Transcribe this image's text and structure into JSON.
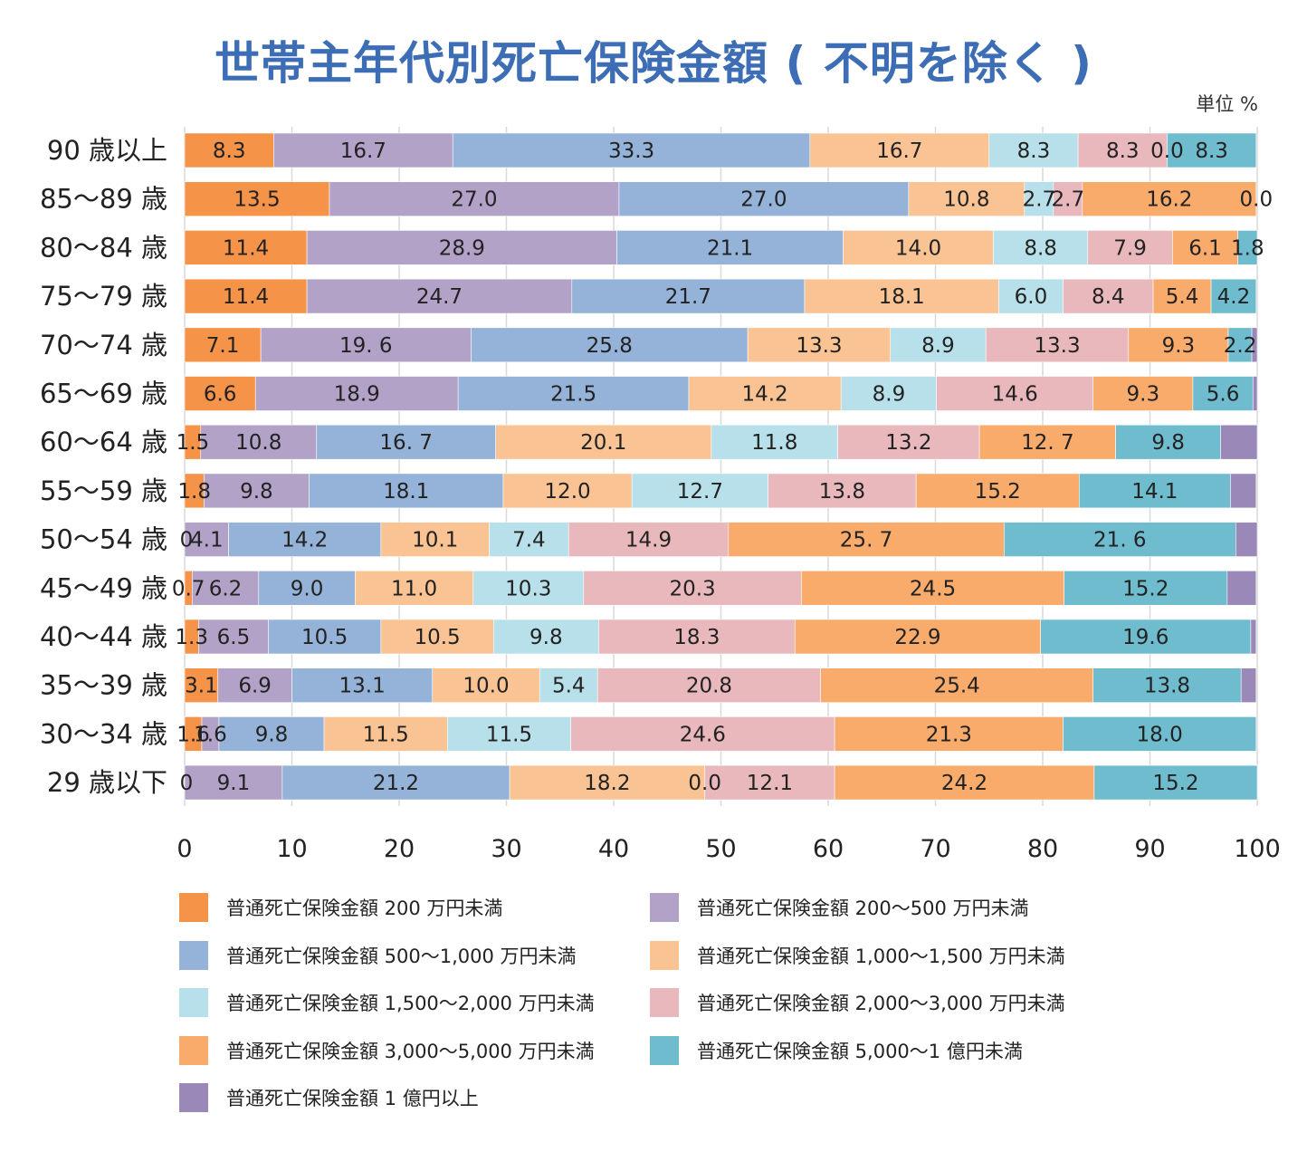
{
  "title": "世帯主年代別死亡保険金額 ( 不明を除く )",
  "unit": "単位 %",
  "chart_data": {
    "type": "bar",
    "orientation": "horizontal",
    "stacked": true,
    "title": "世帯主年代別死亡保険金額 ( 不明を除く )",
    "xlim": [
      0,
      100
    ],
    "xticks": [
      "0",
      "10",
      "20",
      "30",
      "40",
      "50",
      "60",
      "70",
      "80",
      "90",
      "100"
    ],
    "categories": [
      "90 歳以上",
      "85～89 歳",
      "80～84 歳",
      "75～79 歳",
      "70～74 歳",
      "65～69 歳",
      "60～64 歳",
      "55～59 歳",
      "50～54 歳",
      "45～49 歳",
      "40～44 歳",
      "35～39 歳",
      "30～34 歳",
      "29 歳以下"
    ],
    "series": [
      {
        "name": "普通死亡保険金額 200 万円未満",
        "color": "#f59349",
        "values": [
          8.3,
          13.5,
          11.4,
          11.4,
          7.1,
          6.6,
          1.5,
          1.8,
          0.0,
          0.7,
          1.3,
          3.1,
          1.6,
          0.0
        ],
        "labels": [
          "8.3",
          "13.5",
          "11.4",
          "11.4",
          "7.1",
          "6.6",
          "1.5",
          "1.8",
          "0",
          "0.7",
          "1.3",
          "3.1",
          "1.6",
          "0"
        ]
      },
      {
        "name": "普通死亡保険金額 200～500 万円未満",
        "color": "#b3a2c8",
        "values": [
          16.7,
          27.0,
          28.9,
          24.7,
          19.6,
          18.9,
          10.8,
          9.8,
          4.1,
          6.2,
          6.5,
          6.9,
          1.6,
          9.1
        ],
        "labels": [
          "16.7",
          "27.0",
          "28.9",
          "24.7",
          "19. 6",
          "18.9",
          "10.8",
          "9.8",
          "4.1",
          "6.2",
          "6.5",
          "6.9",
          "1.6",
          "9.1"
        ]
      },
      {
        "name": "普通死亡保険金額 500～1,000 万円未満",
        "color": "#95b3d8",
        "values": [
          33.3,
          27.0,
          21.1,
          21.7,
          25.8,
          21.5,
          16.7,
          18.1,
          14.2,
          9.0,
          10.5,
          13.1,
          9.8,
          21.2
        ],
        "labels": [
          "33.3",
          "27.0",
          "21.1",
          "21.7",
          "25.8",
          "21.5",
          "16. 7",
          "18.1",
          "14.2",
          "9.0",
          "10.5",
          "13.1",
          "9.8",
          "21.2"
        ]
      },
      {
        "name": "普通死亡保険金額 1,000～1,500 万円未満",
        "color": "#f9c394",
        "values": [
          16.7,
          10.8,
          14.0,
          18.1,
          13.3,
          14.2,
          20.1,
          12.0,
          10.1,
          11.0,
          10.5,
          10.0,
          11.5,
          18.2
        ],
        "labels": [
          "16.7",
          "10.8",
          "14.0",
          "18.1",
          "13.3",
          "14.2",
          "20.1",
          "12.0",
          "10.1",
          "11.0",
          "10.5",
          "10.0",
          "11.5",
          "18.2"
        ]
      },
      {
        "name": "普通死亡保険金額 1,500～2,000 万円未満",
        "color": "#b8e0ea",
        "values": [
          8.3,
          2.7,
          8.8,
          6.0,
          8.9,
          8.9,
          11.8,
          12.7,
          7.4,
          10.3,
          9.8,
          5.4,
          11.5,
          0.0
        ],
        "labels": [
          "8.3",
          "2.7",
          "8.8",
          "6.0",
          "8.9",
          "8.9",
          "11.8",
          "12.7",
          "7.4",
          "10.3",
          "9.8",
          "5.4",
          "11.5",
          "0.0"
        ]
      },
      {
        "name": "普通死亡保険金額 2,000～3,000 万円未満",
        "color": "#e9b8bc",
        "values": [
          8.3,
          2.7,
          7.9,
          8.4,
          13.3,
          14.6,
          13.2,
          13.8,
          14.9,
          20.3,
          18.3,
          20.8,
          24.6,
          12.1
        ],
        "labels": [
          "8.3",
          "2.7",
          "7.9",
          "8.4",
          "13.3",
          "14.6",
          "13.2",
          "13.8",
          "14.9",
          "20.3",
          "18.3",
          "20.8",
          "24.6",
          "12.1"
        ]
      },
      {
        "name": "普通死亡保険金額 3,000～5,000 万円未満",
        "color": "#f9ab6c",
        "values": [
          0.0,
          16.2,
          6.1,
          5.4,
          9.3,
          9.3,
          12.7,
          15.2,
          25.7,
          24.5,
          22.9,
          25.4,
          21.3,
          24.2
        ],
        "labels": [
          "0.0",
          "16.2",
          "6.1",
          "5.4",
          "9.3",
          "9.3",
          "12. 7",
          "15.2",
          "25. 7",
          "24.5",
          "22.9",
          "25.4",
          "21.3",
          "24.2"
        ]
      },
      {
        "name": "普通死亡保険金額 5,000～1 億円未満",
        "color": "#6fbccf",
        "values": [
          8.3,
          0.0,
          1.8,
          4.2,
          2.2,
          5.6,
          9.8,
          14.1,
          21.6,
          15.2,
          19.6,
          13.8,
          18.0,
          15.2
        ],
        "labels": [
          "8.3",
          "0.0",
          "1.8",
          "4.2",
          "2.2",
          "5.6",
          "9.8",
          "14.1",
          "21. 6",
          "15.2",
          "19.6",
          "13.8",
          "18.0",
          "15.2"
        ]
      },
      {
        "name": "普通死亡保険金額 1 億円以上",
        "color": "#9a88b8",
        "values": [
          0.0,
          0.0,
          0.0,
          0.0,
          0.5,
          1.6,
          3.4,
          2.4,
          2.0,
          2.7,
          0.5,
          1.4,
          0.0,
          0.0
        ],
        "labels": [
          "",
          "",
          "",
          "",
          "",
          "",
          "",
          "",
          "",
          "",
          "",
          "",
          "",
          ""
        ]
      }
    ]
  }
}
